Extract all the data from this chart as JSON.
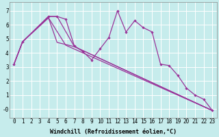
{
  "background_color": "#c6ecec",
  "line_color": "#993399",
  "grid_color": "#ffffff",
  "xlabel": "Windchill (Refroidissement éolien,°C)",
  "xlabel_fontsize": 6.0,
  "tick_fontsize": 5.5,
  "xlim": [
    -0.5,
    23.5
  ],
  "ylim": [
    -0.6,
    7.6
  ],
  "yticks": [
    0,
    1,
    2,
    3,
    4,
    5,
    6,
    7
  ],
  "ytick_labels": [
    "-0",
    "1",
    "2",
    "3",
    "4",
    "5",
    "6",
    "7"
  ],
  "xticks": [
    0,
    1,
    2,
    3,
    4,
    5,
    6,
    7,
    8,
    9,
    10,
    11,
    12,
    13,
    14,
    15,
    16,
    17,
    18,
    19,
    20,
    21,
    22,
    23
  ],
  "jagged": {
    "x": [
      0,
      1,
      4,
      5,
      6,
      7,
      8,
      9,
      10,
      11,
      12,
      13,
      14,
      15,
      16,
      17,
      18,
      19,
      20,
      21,
      22,
      23
    ],
    "y": [
      3.2,
      4.8,
      6.6,
      6.6,
      6.4,
      4.5,
      4.1,
      3.5,
      4.3,
      5.1,
      7.0,
      5.5,
      6.3,
      5.8,
      5.5,
      3.2,
      3.1,
      2.4,
      1.5,
      1.0,
      0.7,
      -0.1
    ]
  },
  "line1": {
    "x": [
      0,
      1,
      4,
      5,
      7,
      23
    ],
    "y": [
      3.2,
      4.8,
      6.6,
      6.6,
      4.45,
      -0.1
    ]
  },
  "line2": {
    "x": [
      0,
      1,
      4,
      6,
      23
    ],
    "y": [
      3.2,
      4.8,
      6.5,
      4.55,
      -0.1
    ]
  },
  "line3": {
    "x": [
      0,
      1,
      4,
      5,
      6,
      7,
      23
    ],
    "y": [
      3.2,
      4.8,
      6.5,
      4.75,
      4.6,
      4.45,
      -0.1
    ]
  }
}
